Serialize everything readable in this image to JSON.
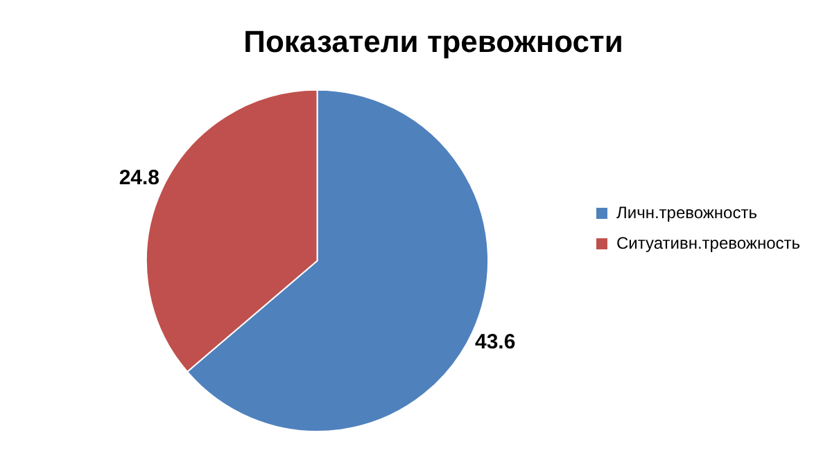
{
  "chart_data": {
    "type": "pie",
    "title": "Показатели тревожности",
    "categories": [
      "Личн.тревожность",
      "Ситуативн.тревожность"
    ],
    "values": [
      43.6,
      24.8
    ],
    "colors": [
      "#4f81bd",
      "#c0504d"
    ],
    "data_labels": true,
    "legend": "right"
  }
}
